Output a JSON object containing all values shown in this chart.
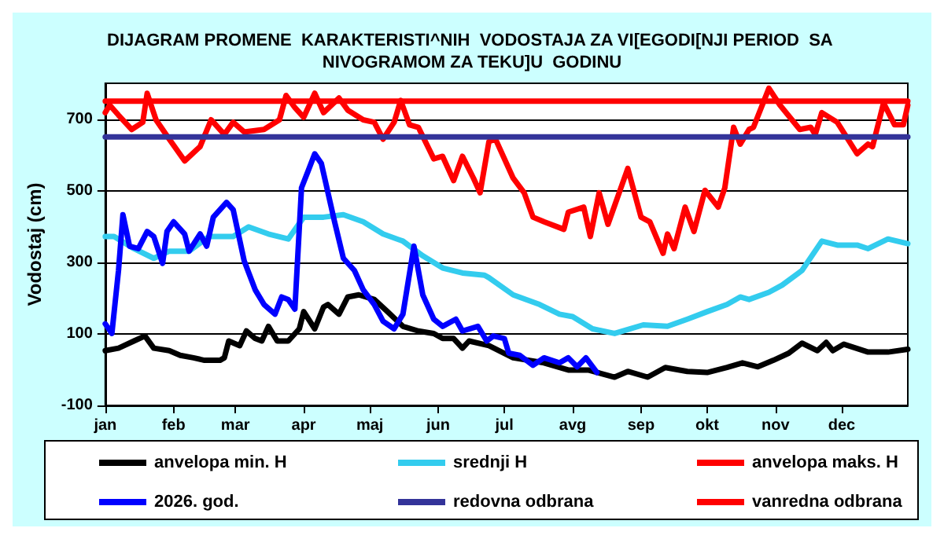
{
  "chart_data": {
    "type": "line",
    "title": "DIJAGRAM PROMENE  KARAKTERISTI^NIH  VODOSTAJA ZA VI[EGODI[NJI PERIOD  SA NIVOGRAMOM ZA TEKU]U  GODINU",
    "ylabel": "Vodostaj (cm)",
    "xlim": [
      "--01-01",
      "--12-31"
    ],
    "xticks": [
      {
        "value": "--01-01",
        "label": "jan"
      },
      {
        "value": "--02-01",
        "label": "feb"
      },
      {
        "value": "--03-01",
        "label": "mar"
      },
      {
        "value": "--04-01",
        "label": "apr"
      },
      {
        "value": "--05-01",
        "label": "maj"
      },
      {
        "value": "--06-01",
        "label": "jun"
      },
      {
        "value": "--07-01",
        "label": "jul"
      },
      {
        "value": "--08-01",
        "label": "avg"
      },
      {
        "value": "--09-01",
        "label": "sep"
      },
      {
        "value": "--10-01",
        "label": "okt"
      },
      {
        "value": "--11-01",
        "label": "nov"
      },
      {
        "value": "--12-01",
        "label": "dec"
      }
    ],
    "ylim": [
      -100,
      800
    ],
    "yticks": [
      -100,
      100,
      300,
      500,
      700
    ],
    "grid": "y",
    "legend": "bottom",
    "marker": "none",
    "line_style": "solid",
    "series": [
      {
        "name": "anvelopa min. H",
        "color": "#000000",
        "x": [
          "--01-01",
          "--01-07",
          "--01-14",
          "--01-19",
          "--01-23",
          "--01-30",
          "--02-04",
          "--02-10",
          "--02-15",
          "--02-22",
          "--02-24",
          "--02-26",
          "--03-03",
          "--03-06",
          "--03-10",
          "--03-13",
          "--03-16",
          "--03-20",
          "--03-25",
          "--03-30",
          "--04-01",
          "--04-06",
          "--04-10",
          "--04-12",
          "--04-17",
          "--04-21",
          "--04-26",
          "--05-03",
          "--05-09",
          "--05-16",
          "--05-23",
          "--05-30",
          "--06-03",
          "--06-08",
          "--06-12",
          "--06-15",
          "--06-24",
          "--07-05",
          "--07-19",
          "--07-30",
          "--08-08",
          "--08-20",
          "--08-26",
          "--09-04",
          "--09-12",
          "--09-22",
          "--10-01",
          "--10-10",
          "--10-17",
          "--10-24",
          "--10-31",
          "--11-07",
          "--11-13",
          "--11-20",
          "--11-24",
          "--11-27",
          "--12-02",
          "--12-13",
          "--12-22",
          "--12-31"
        ],
        "values": [
          53,
          60,
          80,
          94,
          60,
          53,
          40,
          33,
          26,
          26,
          33,
          80,
          67,
          108,
          87,
          80,
          121,
          80,
          80,
          114,
          162,
          114,
          175,
          182,
          155,
          203,
          209,
          196,
          162,
          121,
          108,
          101,
          87,
          87,
          60,
          80,
          67,
          33,
          19,
          -1,
          -1,
          -21,
          -5,
          -21,
          6,
          -5,
          -8,
          6,
          19,
          8,
          26,
          46,
          74,
          53,
          76,
          53,
          71,
          49,
          49,
          57
        ]
      },
      {
        "name": "srednji H",
        "color": "#33ccee",
        "x": [
          "--01-01",
          "--01-05",
          "--01-14",
          "--01-23",
          "--01-30",
          "--02-08",
          "--02-17",
          "--02-28",
          "--03-07",
          "--03-16",
          "--03-25",
          "--04-01",
          "--04-10",
          "--04-19",
          "--04-28",
          "--05-07",
          "--05-16",
          "--05-25",
          "--06-03",
          "--06-12",
          "--06-22",
          "--06-24",
          "--07-05",
          "--07-17",
          "--07-26",
          "--08-01",
          "--08-10",
          "--08-20",
          "--08-26",
          "--09-02",
          "--09-13",
          "--09-22",
          "--10-01",
          "--10-10",
          "--10-16",
          "--10-20",
          "--10-29",
          "--11-04",
          "--11-13",
          "--11-22",
          "--11-29",
          "--12-08",
          "--12-13",
          "--12-22",
          "--12-31"
        ],
        "values": [
          372,
          372,
          338,
          311,
          331,
          331,
          372,
          372,
          399,
          379,
          365,
          426,
          426,
          433,
          413,
          379,
          359,
          318,
          284,
          270,
          264,
          257,
          209,
          182,
          155,
          148,
          114,
          101,
          112,
          125,
          121,
          141,
          162,
          182,
          203,
          196,
          216,
          236,
          277,
          359,
          348,
          348,
          338,
          365,
          352
        ]
      },
      {
        "name": "anvelopa maks. H",
        "color": "#ff0000",
        "x": [
          "--01-01",
          "--01-03",
          "--01-07",
          "--01-13",
          "--01-18",
          "--01-20",
          "--01-24",
          "--01-30",
          "--02-06",
          "--02-13",
          "--02-18",
          "--02-24",
          "--02-28",
          "--03-05",
          "--03-14",
          "--03-21",
          "--03-24",
          "--03-28",
          "--04-01",
          "--04-06",
          "--04-10",
          "--04-17",
          "--04-21",
          "--04-28",
          "--05-03",
          "--05-07",
          "--05-12",
          "--05-15",
          "--05-19",
          "--05-23",
          "--05-30",
          "--06-03",
          "--06-08",
          "--06-12",
          "--06-17",
          "--06-20",
          "--06-24",
          "--06-27",
          "--07-05",
          "--07-10",
          "--07-14",
          "--07-19",
          "--07-28",
          "--07-30",
          "--08-06",
          "--08-09",
          "--08-13",
          "--08-17",
          "--08-26",
          "--09-01",
          "--09-05",
          "--09-11",
          "--09-13",
          "--09-16",
          "--09-21",
          "--09-25",
          "--09-30",
          "--10-06",
          "--10-09",
          "--10-13",
          "--10-16",
          "--10-20",
          "--10-22",
          "--10-29",
          "--11-03",
          "--11-12",
          "--11-17",
          "--11-19",
          "--11-22",
          "--11-29",
          "--12-08",
          "--12-13",
          "--12-15",
          "--12-20",
          "--12-25",
          "--12-29",
          "--12-31"
        ],
        "values": [
          718,
          739,
          711,
          671,
          691,
          772,
          698,
          644,
          583,
          623,
          698,
          657,
          691,
          664,
          671,
          698,
          766,
          732,
          705,
          772,
          718,
          759,
          725,
          698,
          691,
          644,
          691,
          752,
          684,
          677,
          589,
          596,
          528,
          596,
          535,
          494,
          637,
          644,
          535,
          494,
          426,
          413,
          392,
          440,
          454,
          372,
          494,
          406,
          562,
          426,
          413,
          325,
          379,
          338,
          454,
          386,
          501,
          454,
          508,
          677,
          630,
          671,
          677,
          786,
          739,
          671,
          677,
          657,
          718,
          691,
          603,
          630,
          623,
          745,
          684,
          684,
          739
        ]
      },
      {
        "name": "2026. god.",
        "color": "#0000ff",
        "x": [
          "--01-01",
          "--01-04",
          "--01-07",
          "--01-09",
          "--01-12",
          "--01-16",
          "--01-20",
          "--01-23",
          "--01-27",
          "--01-29",
          "--02-01",
          "--02-06",
          "--02-08",
          "--02-13",
          "--02-16",
          "--02-19",
          "--02-25",
          "--02-28",
          "--03-05",
          "--03-10",
          "--03-14",
          "--03-19",
          "--03-22",
          "--03-25",
          "--03-28",
          "--03-31",
          "--04-03",
          "--04-06",
          "--04-09",
          "--04-15",
          "--04-19",
          "--04-24",
          "--04-28",
          "--05-03",
          "--05-07",
          "--05-12",
          "--05-16",
          "--05-21",
          "--05-25",
          "--05-30",
          "--06-03",
          "--06-09",
          "--06-12",
          "--06-19",
          "--06-23",
          "--06-26",
          "--07-01",
          "--07-03",
          "--07-08",
          "--07-14",
          "--07-19",
          "--07-26",
          "--07-30",
          "--08-03",
          "--08-07",
          "--08-12"
        ],
        "values": [
          128,
          101,
          277,
          433,
          345,
          338,
          386,
          372,
          297,
          386,
          413,
          379,
          331,
          379,
          345,
          426,
          467,
          447,
          304,
          223,
          182,
          155,
          203,
          196,
          169,
          508,
          555,
          603,
          576,
          413,
          311,
          277,
          223,
          182,
          135,
          114,
          155,
          345,
          209,
          141,
          121,
          141,
          108,
          121,
          80,
          94,
          87,
          46,
          40,
          12,
          33,
          19,
          33,
          8,
          33,
          -8
        ]
      },
      {
        "name": "redovna odbrana",
        "color": "#333399",
        "x": [
          "--01-01",
          "--12-31"
        ],
        "values": [
          650,
          650
        ]
      },
      {
        "name": "vanredna odbrana",
        "color": "#ff0000",
        "x": [
          "--01-01",
          "--12-31"
        ],
        "values": [
          750,
          750
        ]
      }
    ]
  }
}
